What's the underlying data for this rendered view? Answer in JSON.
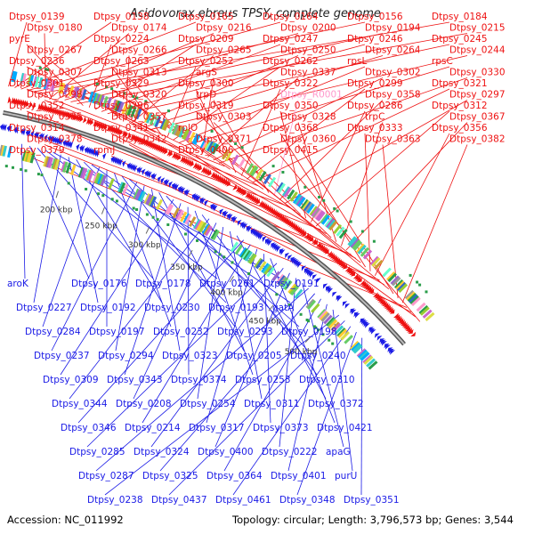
{
  "title": "Acidovorax ebreus TPSY, complete genome",
  "accession": "Accession: NC_011992",
  "summary": "Topology: circular; Length: 3,796,573 bp; Genes: 3,544",
  "colors": {
    "forward": "#ee1111",
    "reverse": "#1a1ae6",
    "rna": "#ff99cc",
    "backbone": "#888888",
    "scale": "#666666"
  },
  "scale_ticks": [
    "200 kbp",
    "250 kbp",
    "300 kbp",
    "350 kbp",
    "400 kbp",
    "450 kbp",
    "500 kbp"
  ],
  "forward_labels": [
    "Dtpsy_0139",
    "Dtpsy_0138",
    "Dtpsy_0165",
    "Dtpsy_0164",
    "Dtpsy_0156",
    "Dtpsy_0184",
    "Dtpsy_0180",
    "Dtpsy_0174",
    "Dtpsy_0216",
    "Dtpsy_0200",
    "Dtpsy_0194",
    "Dtpsy_0215",
    "pyrE",
    "Dtpsy_0224",
    "Dtpsy_0209",
    "Dtpsy_0247",
    "Dtpsy_0246",
    "Dtpsy_0245",
    "Dtpsy_0267",
    "Dtpsy_0266",
    "Dtpsy_0265",
    "Dtpsy_0250",
    "Dtpsy_0264",
    "Dtpsy_0244",
    "Dtpsy_0236",
    "Dtpsy_0263",
    "Dtpsy_0252",
    "Dtpsy_0262",
    "rpsL",
    "rpsC",
    "Dtpsy_0307",
    "Dtpsy_0313",
    "argS",
    "Dtpsy_0337",
    "Dtpsy_0302",
    "Dtpsy_0330",
    "Dtpsy_0301",
    "Dtpsy_0329",
    "Dtpsy_0300",
    "Dtpsy_0322",
    "Dtpsy_0299",
    "Dtpsy_0321",
    "Dtpsy_0298",
    "Dtpsy_0320",
    "trpD",
    "Dtpsy_R0001",
    "Dtpsy_0358",
    "Dtpsy_0297",
    "Dtpsy_0352",
    "Dtpsy_0296",
    "Dtpsy_0319",
    "Dtpsy_0350",
    "Dtpsy_0286",
    "Dtpsy_0312",
    "Dtpsy_0335",
    "Dtpsy_0357",
    "Dtpsy_0303",
    "Dtpsy_0328",
    "trpC",
    "Dtpsy_0367",
    "Dtpsy_0314",
    "Dtpsy_0341",
    "rplO",
    "Dtpsy_0368",
    "Dtpsy_0333",
    "Dtpsy_0356",
    "Dtpsy_0378",
    "Dtpsy_0342",
    "Dtpsy_0371",
    "Dtpsy_0360",
    "Dtpsy_0363",
    "Dtpsy_0382",
    "Dtpsy_0379",
    "rpmJ",
    "Dtpsy_0406",
    "Dtpsy_0415"
  ],
  "reverse_labels": [
    "aroK",
    "Dtpsy_0176",
    "Dtpsy_0178",
    "Dtpsy_0261",
    "Dtpsy_0191",
    "Dtpsy_0227",
    "Dtpsy_0192",
    "Dtpsy_0230",
    "Dtpsy_0193",
    "gatA",
    "Dtpsy_0284",
    "Dtpsy_0197",
    "Dtpsy_0232",
    "Dtpsy_0293",
    "Dtpsy_0198",
    "Dtpsy_0237",
    "Dtpsy_0294",
    "Dtpsy_0323",
    "Dtpsy_0205",
    "Dtpsy_0240",
    "Dtpsy_0309",
    "Dtpsy_0343",
    "Dtpsy_0374",
    "Dtpsy_0253",
    "Dtpsy_0310",
    "Dtpsy_0344",
    "Dtpsy_0208",
    "Dtpsy_0254",
    "Dtpsy_0311",
    "Dtpsy_0372",
    "Dtpsy_0346",
    "Dtpsy_0214",
    "Dtpsy_0317",
    "Dtpsy_0373",
    "Dtpsy_0421",
    "Dtpsy_0285",
    "Dtpsy_0324",
    "Dtpsy_0400",
    "Dtpsy_0222",
    "apaG",
    "Dtpsy_0287",
    "Dtpsy_0325",
    "Dtpsy_0364",
    "Dtpsy_0401",
    "purU",
    "Dtpsy_0238",
    "Dtpsy_0437",
    "Dtpsy_0461",
    "Dtpsy_0348",
    "Dtpsy_0351"
  ]
}
